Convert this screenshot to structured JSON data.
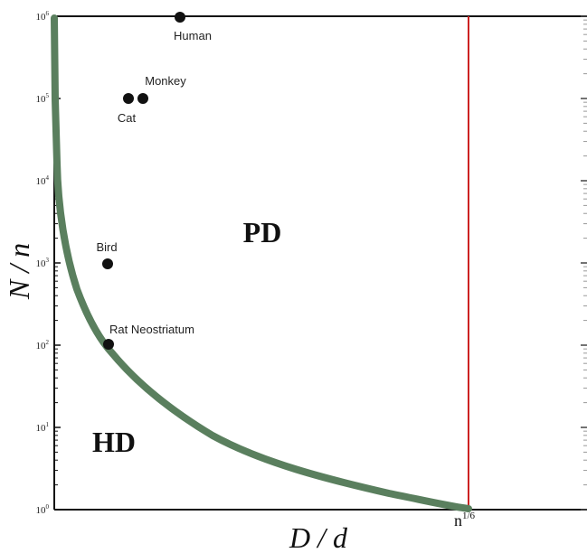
{
  "chart_data": {
    "type": "scatter",
    "title": "",
    "xlabel": "D / d",
    "ylabel": "N / n",
    "y_scale": "log",
    "ylim": [
      1,
      1000000
    ],
    "y_ticks": [
      {
        "value": 1,
        "base": "10",
        "exp": "0"
      },
      {
        "value": 10,
        "base": "10",
        "exp": "1"
      },
      {
        "value": 100,
        "base": "10",
        "exp": "2"
      },
      {
        "value": 1000,
        "base": "10",
        "exp": "3"
      },
      {
        "value": 10000,
        "base": "10",
        "exp": "4"
      },
      {
        "value": 100000,
        "base": "10",
        "exp": "5"
      },
      {
        "value": 1000000,
        "base": "10",
        "exp": "6"
      }
    ],
    "x_reference": {
      "label_base": "n",
      "label_exp": "1/6",
      "color": "#cc2222"
    },
    "points": [
      {
        "name": "Human",
        "y": 1000000
      },
      {
        "name": "Monkey",
        "y": 100000
      },
      {
        "name": "Cat",
        "y": 100000
      },
      {
        "name": "Bird",
        "y": 1000
      },
      {
        "name": "Rat Neostriatum",
        "y": 100
      }
    ],
    "regions": [
      {
        "name": "PD"
      },
      {
        "name": "HD"
      }
    ],
    "boundary_curve": {
      "color": "#5a7f5e"
    },
    "grid": false,
    "legend": "none"
  }
}
